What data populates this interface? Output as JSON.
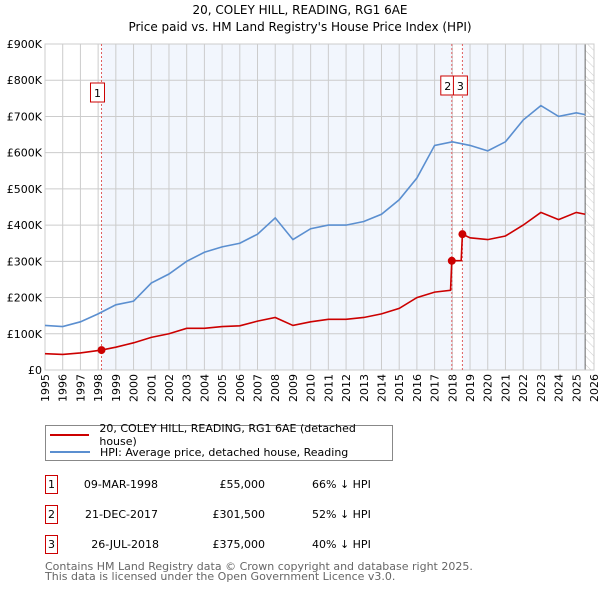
{
  "chart_data": {
    "type": "line",
    "title": "20, COLEY HILL, READING, RG1 6AE",
    "subtitle": "Price paid vs. HM Land Registry's House Price Index (HPI)",
    "xlim": [
      1995,
      2026
    ],
    "ylim": [
      0,
      900000
    ],
    "x_ticks": [
      "1995",
      "1996",
      "1997",
      "1998",
      "1999",
      "2000",
      "2001",
      "2002",
      "2003",
      "2004",
      "2005",
      "2006",
      "2007",
      "2008",
      "2009",
      "2010",
      "2011",
      "2012",
      "2013",
      "2014",
      "2015",
      "2016",
      "2017",
      "2018",
      "2019",
      "2020",
      "2021",
      "2022",
      "2023",
      "2024",
      "2025",
      "2026"
    ],
    "y_ticks": [
      {
        "v": 0,
        "label": "£0"
      },
      {
        "v": 100000,
        "label": "£100K"
      },
      {
        "v": 200000,
        "label": "£200K"
      },
      {
        "v": 300000,
        "label": "£300K"
      },
      {
        "v": 400000,
        "label": "£400K"
      },
      {
        "v": 500000,
        "label": "£500K"
      },
      {
        "v": 600000,
        "label": "£600K"
      },
      {
        "v": 700000,
        "label": "£700K"
      },
      {
        "v": 800000,
        "label": "£800K"
      },
      {
        "v": 900000,
        "label": "£900K"
      }
    ],
    "grid": true,
    "series": [
      {
        "name": "20, COLEY HILL, READING, RG1 6AE (detached house)",
        "color": "#cc0000",
        "x": [
          1995,
          1996,
          1997,
          1998.19,
          1999,
          2000,
          2001,
          2002,
          2003,
          2004,
          2005,
          2006,
          2007,
          2008,
          2009,
          2010,
          2011,
          2012,
          2013,
          2014,
          2015,
          2016,
          2017,
          2017.9,
          2017.97,
          2018.5,
          2018.57,
          2019,
          2020,
          2021,
          2022,
          2023,
          2024,
          2025,
          2025.5
        ],
        "y": [
          45000,
          43000,
          47000,
          55000,
          63000,
          75000,
          90000,
          100000,
          115000,
          115000,
          120000,
          122000,
          135000,
          145000,
          123000,
          133000,
          140000,
          140000,
          145000,
          155000,
          170000,
          200000,
          215000,
          220000,
          301500,
          302000,
          375000,
          365000,
          360000,
          370000,
          400000,
          435000,
          415000,
          435000,
          430000
        ]
      },
      {
        "name": "HPI: Average price, detached house, Reading",
        "color": "#5b8fd0",
        "x": [
          1995,
          1996,
          1997,
          1998,
          1999,
          2000,
          2001,
          2002,
          2003,
          2004,
          2005,
          2006,
          2007,
          2008,
          2009,
          2010,
          2011,
          2012,
          2013,
          2014,
          2015,
          2016,
          2017,
          2018,
          2019,
          2020,
          2021,
          2022,
          2023,
          2024,
          2025,
          2025.5
        ],
        "y": [
          123000,
          120000,
          133000,
          155000,
          180000,
          190000,
          240000,
          265000,
          300000,
          325000,
          340000,
          350000,
          375000,
          420000,
          360000,
          390000,
          400000,
          400000,
          410000,
          430000,
          470000,
          530000,
          620000,
          630000,
          620000,
          605000,
          630000,
          690000,
          730000,
          700000,
          710000,
          705000
        ]
      }
    ],
    "sales": [
      {
        "n": "1",
        "x": 1998.19,
        "y": 55000,
        "date": "09-MAR-1998",
        "price": "£55,000",
        "hpi": "66% ↓ HPI"
      },
      {
        "n": "2",
        "x": 2017.97,
        "y": 301500,
        "date": "21-DEC-2017",
        "price": "£301,500",
        "hpi": "52% ↓ HPI"
      },
      {
        "n": "3",
        "x": 2018.57,
        "y": 375000,
        "date": "26-JUL-2018",
        "price": "£375,000",
        "hpi": "40% ↓ HPI"
      }
    ],
    "forecast_start": 2025.5,
    "legend_position": "bottom"
  },
  "footer": {
    "line1": "Contains HM Land Registry data © Crown copyright and database right 2025.",
    "line2": "This data is licensed under the Open Government Licence v3.0."
  }
}
